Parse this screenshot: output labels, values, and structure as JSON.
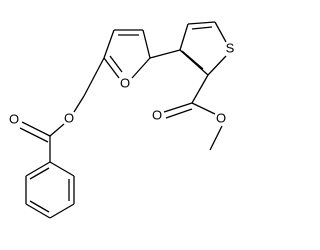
{
  "atoms": [
    {
      "label": "S"
    },
    {
      "label": "O"
    },
    {
      "label": "O"
    },
    {
      "label": "O"
    },
    {
      "label": "O"
    },
    {
      "label": "O"
    }
  ]
}
